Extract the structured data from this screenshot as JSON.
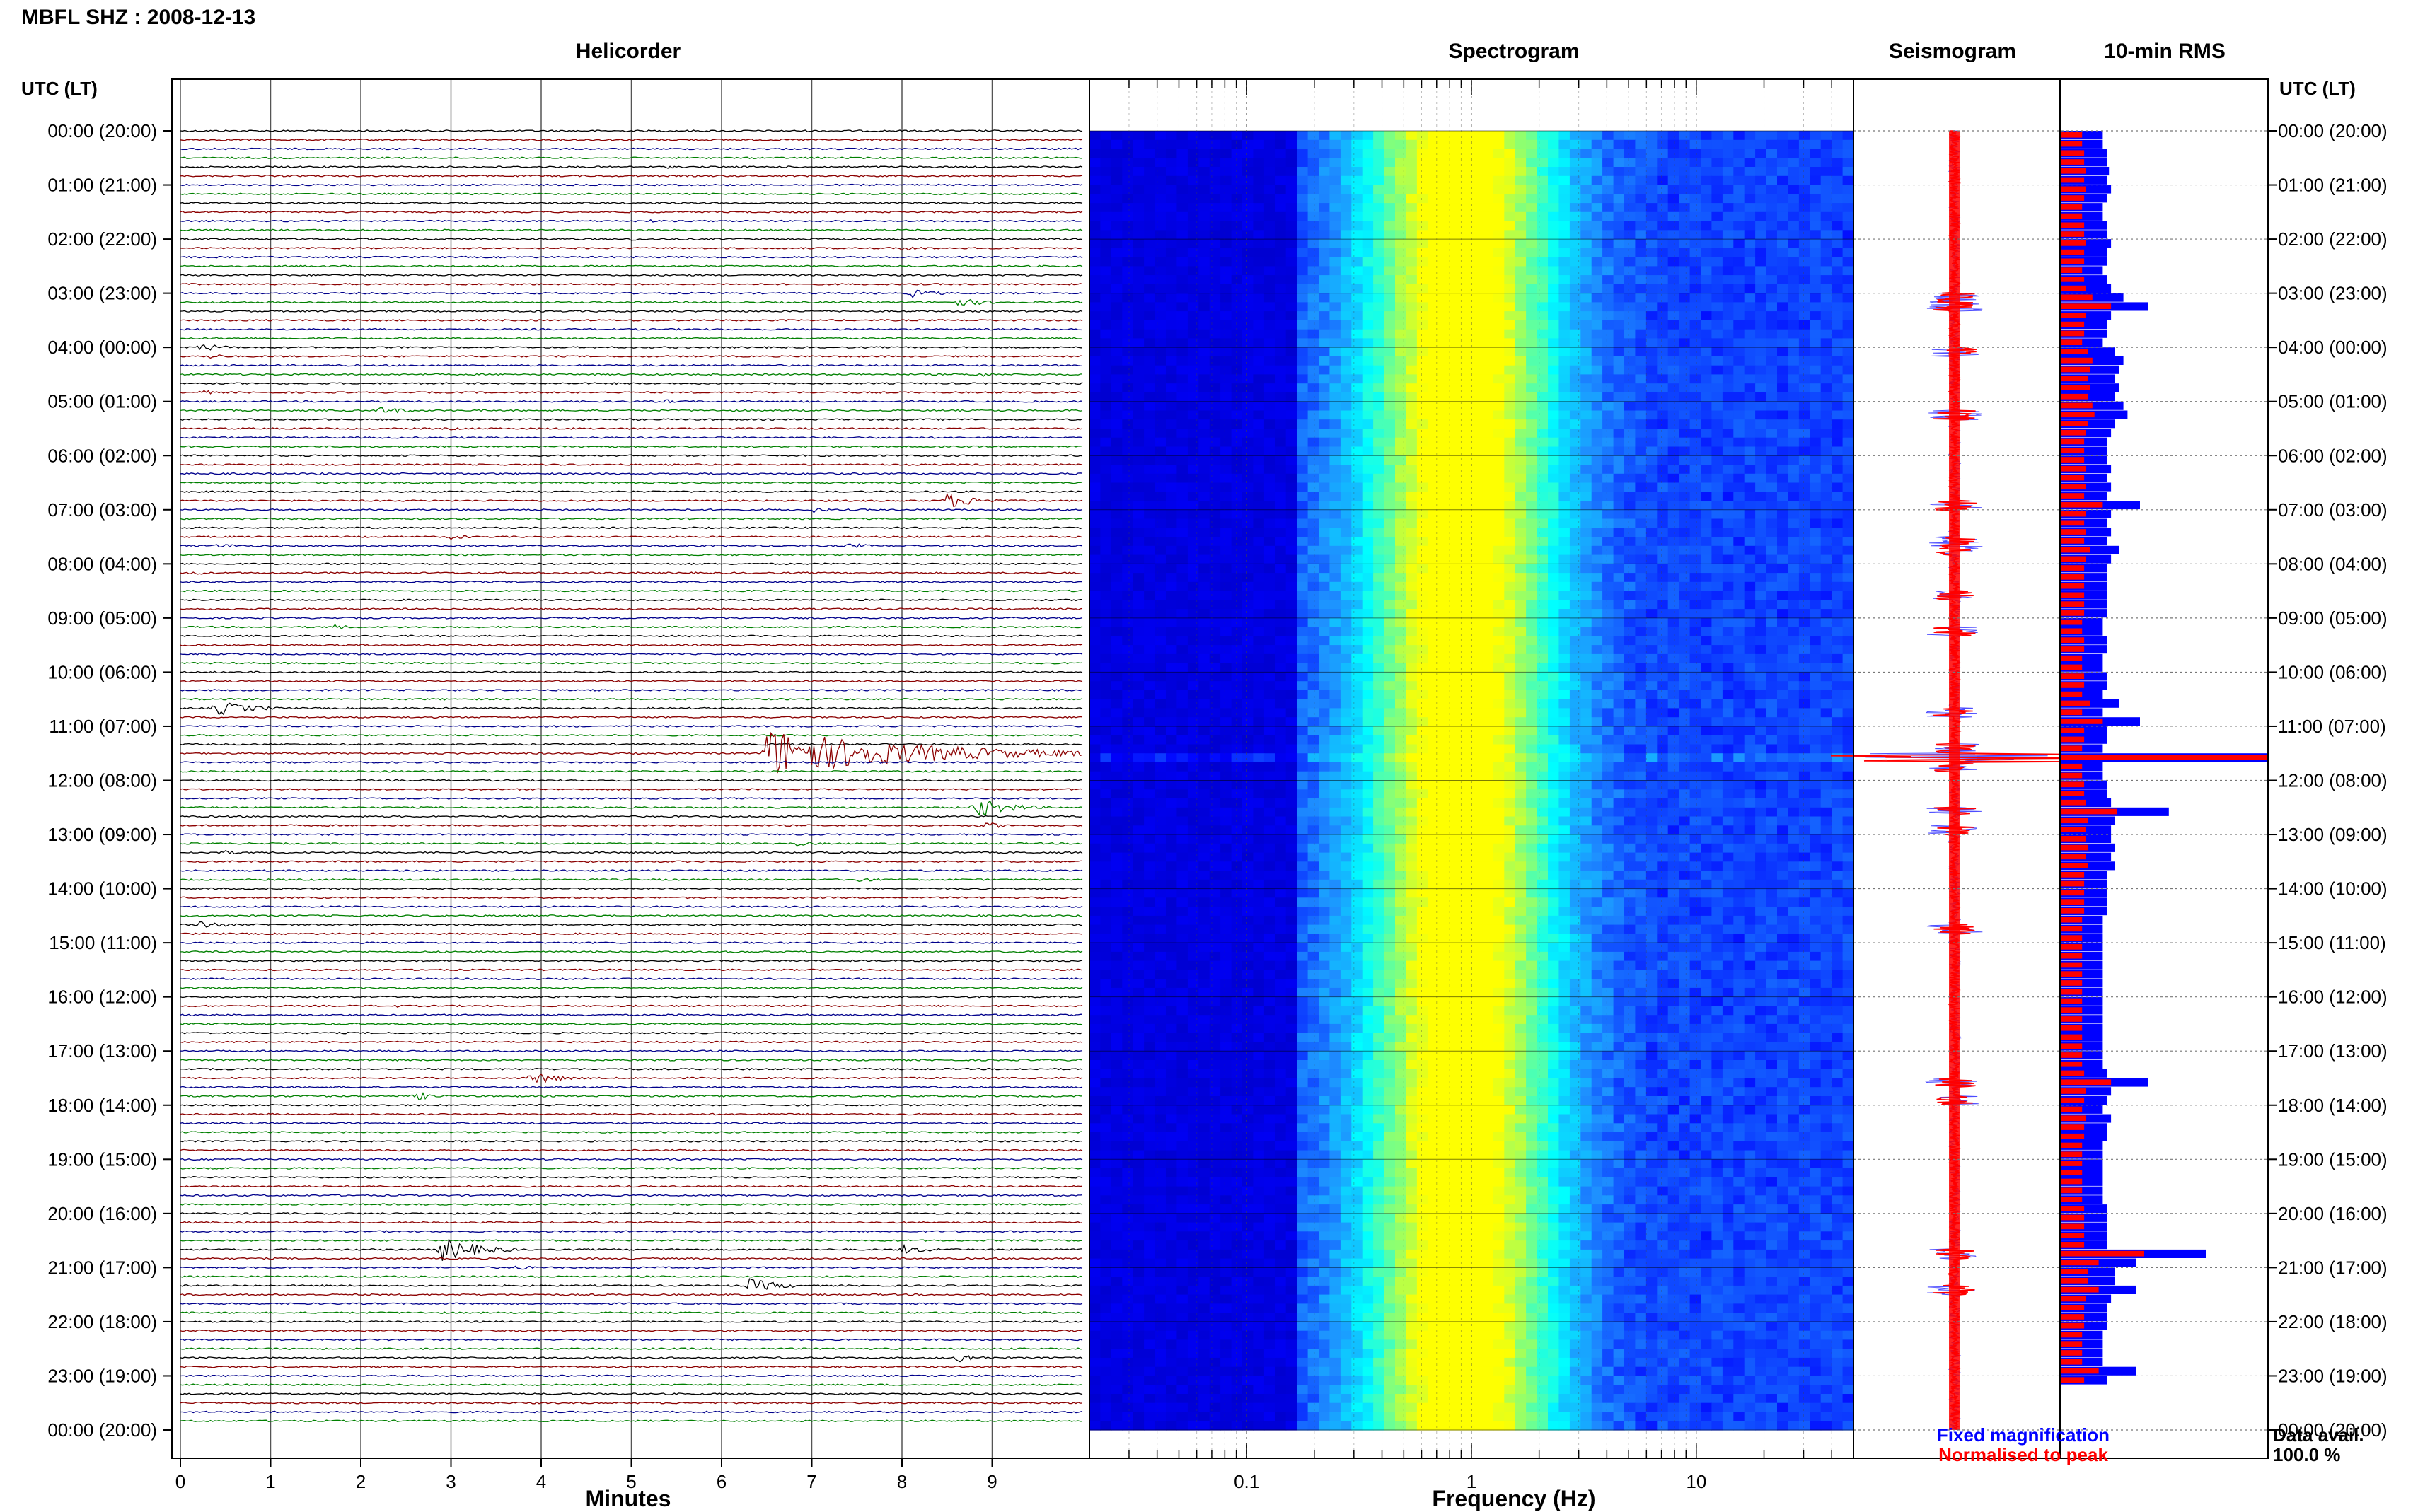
{
  "header": {
    "title": "MBFL SHZ : 2008-12-13"
  },
  "panels": {
    "helicorder_title": "Helicorder",
    "spectrogram_title": "Spectrogram",
    "seismogram_title": "Seismogram",
    "rms_title": "10-min RMS"
  },
  "axes": {
    "left_header": "UTC (LT)",
    "right_header": "UTC (LT)",
    "minutes_label": "Minutes",
    "frequency_label": "Frequency (Hz)"
  },
  "legend": {
    "fixed": "Fixed magnification",
    "normalised": "Normalised to peak"
  },
  "availability": {
    "label": "Data avail.",
    "value": "100.0 %"
  },
  "colors": {
    "black": "#000000",
    "red": "#8b0000",
    "blue": "#00008b",
    "green": "#008000",
    "seis": "#ff0000",
    "rms_fixed": "#0000ff",
    "rms_norm": "#ff0000"
  },
  "chart_data": [
    {
      "type": "line",
      "title": "Helicorder",
      "xlabel": "Minutes",
      "ylabel": "UTC (LT)",
      "x_ticks": [
        "0",
        "1",
        "2",
        "3",
        "4",
        "5",
        "6",
        "7",
        "8",
        "9"
      ],
      "xlim": [
        0,
        10
      ],
      "y_ticks": [
        "00:00 (20:00)",
        "01:00 (21:00)",
        "02:00 (22:00)",
        "03:00 (23:00)",
        "04:00 (00:00)",
        "05:00 (01:00)",
        "06:00 (02:00)",
        "07:00 (03:00)",
        "08:00 (04:00)",
        "09:00 (05:00)",
        "10:00 (06:00)",
        "11:00 (07:00)",
        "12:00 (08:00)",
        "13:00 (09:00)",
        "14:00 (10:00)",
        "15:00 (11:00)",
        "16:00 (12:00)",
        "17:00 (13:00)",
        "18:00 (14:00)",
        "19:00 (15:00)",
        "20:00 (16:00)",
        "21:00 (17:00)",
        "22:00 (18:00)",
        "23:00 (19:00)",
        "00:00 (20:00)"
      ],
      "trace_colors_cycle": [
        "black",
        "red",
        "blue",
        "green"
      ],
      "rows_per_hour": 6,
      "events": [
        {
          "row": 1,
          "minute": 2.6,
          "amp": 1,
          "len": 0.4
        },
        {
          "row": 3,
          "minute": 7.0,
          "amp": 1,
          "len": 0.4
        },
        {
          "row": 4,
          "minute": 5.4,
          "amp": 1,
          "len": 0.4
        },
        {
          "row": 10,
          "minute": 5.2,
          "amp": 1,
          "len": 0.4
        },
        {
          "row": 13,
          "minute": 8.0,
          "amp": 2,
          "len": 0.5
        },
        {
          "row": 12,
          "minute": 5.0,
          "amp": 1,
          "len": 0.4
        },
        {
          "row": 18,
          "minute": 8.1,
          "amp": 3,
          "len": 0.6
        },
        {
          "row": 19,
          "minute": 8.6,
          "amp": 3,
          "len": 0.7
        },
        {
          "row": 22,
          "minute": 4.2,
          "amp": 1,
          "len": 0.3
        },
        {
          "row": 24,
          "minute": 0.2,
          "amp": 3,
          "len": 0.6
        },
        {
          "row": 25,
          "minute": 0.3,
          "amp": 2,
          "len": 0.5
        },
        {
          "row": 27,
          "minute": 8.8,
          "amp": 2,
          "len": 0.5
        },
        {
          "row": 28,
          "minute": 10.0,
          "amp": 2,
          "len": 0.3
        },
        {
          "row": 29,
          "minute": 0.2,
          "amp": 2,
          "len": 0.4
        },
        {
          "row": 30,
          "minute": 5.3,
          "amp": 2,
          "len": 0.4
        },
        {
          "row": 31,
          "minute": 2.2,
          "amp": 3,
          "len": 0.6
        },
        {
          "row": 33,
          "minute": 3.0,
          "amp": 1,
          "len": 0.4
        },
        {
          "row": 38,
          "minute": 1.5,
          "amp": 1,
          "len": 0.4
        },
        {
          "row": 41,
          "minute": 8.5,
          "amp": 5,
          "len": 0.8
        },
        {
          "row": 42,
          "minute": 7.0,
          "amp": 2,
          "len": 0.4
        },
        {
          "row": 45,
          "minute": 3.0,
          "amp": 2,
          "len": 0.4
        },
        {
          "row": 46,
          "minute": 0.4,
          "amp": 2,
          "len": 0.5
        },
        {
          "row": 46,
          "minute": 7.4,
          "amp": 2,
          "len": 0.5
        },
        {
          "row": 49,
          "minute": 0.1,
          "amp": 2,
          "len": 0.4
        },
        {
          "row": 50,
          "minute": 3.2,
          "amp": 1,
          "len": 0.3
        },
        {
          "row": 55,
          "minute": 1.7,
          "amp": 2,
          "len": 0.4
        },
        {
          "row": 64,
          "minute": 0.4,
          "amp": 5,
          "len": 0.8
        },
        {
          "row": 64,
          "minute": 8.8,
          "amp": 2,
          "len": 0.4
        },
        {
          "row": 69,
          "minute": 6.5,
          "amp": 16,
          "len": 3.5
        },
        {
          "row": 71,
          "minute": 10.0,
          "amp": 2,
          "len": 0.3
        },
        {
          "row": 75,
          "minute": 8.8,
          "amp": 7,
          "len": 0.8
        },
        {
          "row": 77,
          "minute": 8.9,
          "amp": 3,
          "len": 0.4
        },
        {
          "row": 79,
          "minute": 6.8,
          "amp": 2,
          "len": 0.5
        },
        {
          "row": 80,
          "minute": 0.4,
          "amp": 2,
          "len": 0.5
        },
        {
          "row": 83,
          "minute": 7.5,
          "amp": 2,
          "len": 0.4
        },
        {
          "row": 88,
          "minute": 0.2,
          "amp": 3,
          "len": 0.6
        },
        {
          "row": 97,
          "minute": 2.4,
          "amp": 1,
          "len": 0.3
        },
        {
          "row": 105,
          "minute": 3.9,
          "amp": 5,
          "len": 0.6
        },
        {
          "row": 107,
          "minute": 2.6,
          "amp": 3,
          "len": 0.5
        },
        {
          "row": 124,
          "minute": 2.9,
          "amp": 8,
          "len": 0.9
        },
        {
          "row": 124,
          "minute": 8.0,
          "amp": 3,
          "len": 0.7
        },
        {
          "row": 126,
          "minute": 3.7,
          "amp": 2,
          "len": 0.4
        },
        {
          "row": 128,
          "minute": 6.3,
          "amp": 5,
          "len": 0.7
        },
        {
          "row": 136,
          "minute": 8.6,
          "amp": 4,
          "len": 0.5
        },
        {
          "row": 137,
          "minute": 10.0,
          "amp": 1,
          "len": 0.3
        }
      ]
    },
    {
      "type": "heatmap",
      "title": "Spectrogram",
      "xlabel": "Frequency (Hz)",
      "x_scale": "log",
      "xlim": [
        0.02,
        50
      ],
      "x_tick_labels": [
        "0.1",
        "1",
        "10"
      ],
      "colormap": [
        "#00008b",
        "#0000ff",
        "#1e90ff",
        "#00ffff",
        "#7fff7f",
        "#ffff00"
      ]
    },
    {
      "type": "line",
      "title": "Seismogram",
      "event_rows": [
        18,
        19,
        24,
        31,
        41,
        45,
        46,
        51,
        55,
        64,
        68,
        69,
        70,
        75,
        77,
        88,
        105,
        107,
        124,
        128
      ],
      "peak_row": 69
    },
    {
      "type": "bar",
      "title": "10-min RMS",
      "series": [
        {
          "name": "Fixed magnification",
          "values_relative": [
            0.2,
            0.2,
            0.22,
            0.22,
            0.23,
            0.22,
            0.24,
            0.22,
            0.2,
            0.2,
            0.22,
            0.22,
            0.24,
            0.22,
            0.22,
            0.2,
            0.22,
            0.24,
            0.3,
            0.42,
            0.24,
            0.22,
            0.22,
            0.2,
            0.26,
            0.3,
            0.28,
            0.26,
            0.28,
            0.26,
            0.3,
            0.32,
            0.26,
            0.24,
            0.22,
            0.22,
            0.22,
            0.24,
            0.22,
            0.24,
            0.22,
            0.38,
            0.24,
            0.22,
            0.24,
            0.22,
            0.28,
            0.24,
            0.22,
            0.22,
            0.22,
            0.22,
            0.22,
            0.22,
            0.2,
            0.2,
            0.22,
            0.22,
            0.2,
            0.2,
            0.22,
            0.22,
            0.2,
            0.28,
            0.2,
            0.38,
            0.22,
            0.22,
            0.2,
            1.0,
            0.2,
            0.2,
            0.22,
            0.22,
            0.24,
            0.52,
            0.26,
            0.24,
            0.24,
            0.26,
            0.24,
            0.26,
            0.22,
            0.22,
            0.22,
            0.22,
            0.22,
            0.2,
            0.2,
            0.2,
            0.2,
            0.2,
            0.2,
            0.2,
            0.2,
            0.2,
            0.2,
            0.2,
            0.2,
            0.2,
            0.2,
            0.2,
            0.2,
            0.2,
            0.22,
            0.42,
            0.24,
            0.22,
            0.2,
            0.24,
            0.22,
            0.22,
            0.2,
            0.2,
            0.2,
            0.2,
            0.2,
            0.2,
            0.2,
            0.22,
            0.22,
            0.22,
            0.22,
            0.22,
            0.7,
            0.36,
            0.26,
            0.26,
            0.36,
            0.24,
            0.22,
            0.22,
            0.22,
            0.2,
            0.2,
            0.2,
            0.2,
            0.36,
            0.22
          ]
        },
        {
          "name": "Normalised to peak",
          "values_relative": [
            0.1,
            0.1,
            0.11,
            0.11,
            0.12,
            0.11,
            0.12,
            0.11,
            0.1,
            0.1,
            0.11,
            0.11,
            0.12,
            0.11,
            0.11,
            0.1,
            0.11,
            0.12,
            0.15,
            0.24,
            0.12,
            0.11,
            0.11,
            0.1,
            0.13,
            0.15,
            0.14,
            0.13,
            0.14,
            0.13,
            0.15,
            0.16,
            0.13,
            0.12,
            0.11,
            0.11,
            0.11,
            0.12,
            0.11,
            0.12,
            0.11,
            0.2,
            0.12,
            0.11,
            0.12,
            0.11,
            0.14,
            0.12,
            0.11,
            0.11,
            0.11,
            0.11,
            0.11,
            0.11,
            0.1,
            0.1,
            0.11,
            0.11,
            0.1,
            0.1,
            0.11,
            0.11,
            0.1,
            0.14,
            0.1,
            0.2,
            0.11,
            0.11,
            0.1,
            1.0,
            0.1,
            0.1,
            0.11,
            0.11,
            0.12,
            0.27,
            0.13,
            0.12,
            0.12,
            0.13,
            0.12,
            0.13,
            0.11,
            0.11,
            0.11,
            0.11,
            0.11,
            0.1,
            0.1,
            0.1,
            0.1,
            0.1,
            0.1,
            0.1,
            0.1,
            0.1,
            0.1,
            0.1,
            0.1,
            0.1,
            0.1,
            0.1,
            0.1,
            0.1,
            0.11,
            0.24,
            0.12,
            0.11,
            0.1,
            0.12,
            0.11,
            0.11,
            0.1,
            0.1,
            0.1,
            0.1,
            0.1,
            0.1,
            0.1,
            0.11,
            0.11,
            0.11,
            0.11,
            0.11,
            0.4,
            0.18,
            0.13,
            0.13,
            0.18,
            0.12,
            0.11,
            0.11,
            0.11,
            0.1,
            0.1,
            0.1,
            0.1,
            0.18,
            0.11
          ]
        }
      ]
    }
  ]
}
